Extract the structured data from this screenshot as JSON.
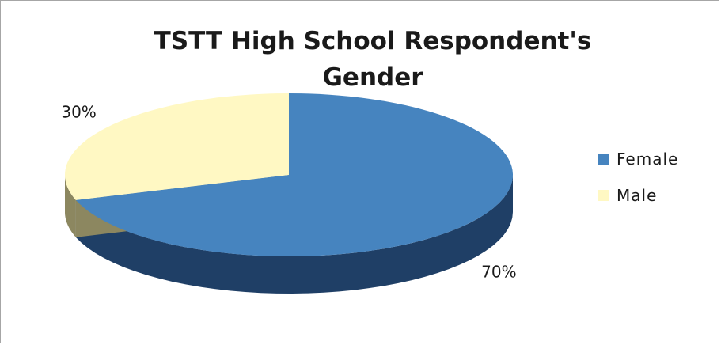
{
  "chart_data": {
    "type": "pie",
    "title": "TSTT High School Respondent's Gender",
    "title_lines": [
      "TSTT High School Respondent's",
      "Gender"
    ],
    "categories": [
      "Female",
      "Male"
    ],
    "values": [
      70,
      30
    ],
    "labels": [
      "70%",
      "30%"
    ],
    "colors": [
      "#4684bf",
      "#fff8c3"
    ],
    "side_colors": [
      "#1f3f66",
      "#8c8760"
    ],
    "legend_position": "right",
    "style": "3d"
  }
}
